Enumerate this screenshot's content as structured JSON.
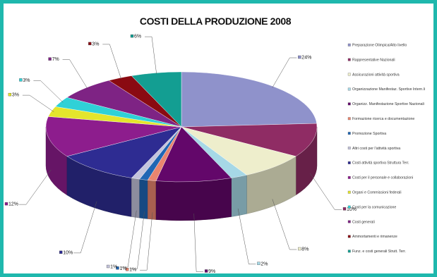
{
  "chart_data": {
    "type": "pie",
    "title": "COSTI DELLA PRODUZIONE 2008",
    "categories": [
      "Preparazione Olimpica/Alto livello",
      "Rappresentative Nazionali",
      "Assicurazioni attività sportiva",
      "Organizzazione Manifestaz. Sportive Intern.li",
      "Organizz. Manifestazione Sportive Nazionali",
      "Formazione ricerca e documentazione",
      "Promozione Sportiva",
      "Altri costi per l'attività sportiva",
      "Costi attività sportiva Struttura Terr.",
      "Costi per il personale e collaborazioni",
      "Organi e Commissioni federali",
      "Costi per la comunicazione",
      "Costi generali",
      "Ammortamenti e rimanenze",
      "Funz. e costi generali Strutt. Terr."
    ],
    "values": [
      24,
      10,
      8,
      2,
      9,
      1,
      1,
      1,
      10,
      12,
      3,
      3,
      7,
      3,
      6
    ],
    "value_labels": [
      "24%",
      "10%",
      "8%",
      "2%",
      "9%",
      "1%",
      "1%",
      "1%",
      "10%",
      "12%",
      "3%",
      "3%",
      "7%",
      "3%",
      "6%"
    ],
    "colors": [
      "#8f92cb",
      "#8f2c64",
      "#eeeecc",
      "#a6d8e6",
      "#63076a",
      "#e9856f",
      "#1f66b4",
      "#c4c4dc",
      "#2e2c92",
      "#8d1d8d",
      "#e4e52c",
      "#2fd1d7",
      "#7e2384",
      "#8a0a12",
      "#139e92"
    ],
    "legend_position": "right",
    "style": "3d-pie"
  }
}
